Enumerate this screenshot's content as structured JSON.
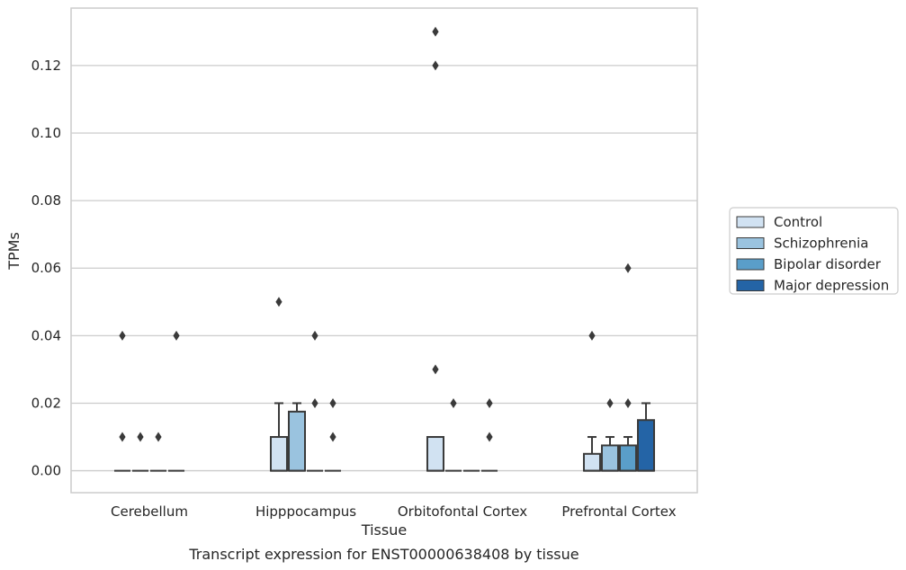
{
  "chart_data": {
    "type": "box",
    "title": "Transcript expression for ENST00000638408 by tissue",
    "xlabel": "Tissue",
    "ylabel": "TPMs",
    "ylim": [
      -0.0065,
      0.137
    ],
    "yticks": [
      0.0,
      0.02,
      0.04,
      0.06,
      0.08,
      0.1,
      0.12
    ],
    "ytick_labels": [
      "0.00",
      "0.02",
      "0.04",
      "0.06",
      "0.08",
      "0.10",
      "0.12"
    ],
    "grid": "horizontal",
    "legend_position": "right",
    "categories": [
      "Cerebellum",
      "Hipppocampus",
      "Orbitofontal Cortex",
      "Prefrontal Cortex"
    ],
    "series": [
      {
        "name": "Control",
        "color": "#d1e2f2",
        "boxes": [
          {
            "q1": 0,
            "median": 0,
            "q3": 0,
            "whisker_low": 0,
            "whisker_high": 0,
            "outliers": [
              0.04,
              0.01
            ]
          },
          {
            "q1": 0,
            "median": 0,
            "q3": 0.01,
            "whisker_low": 0,
            "whisker_high": 0.02,
            "outliers": [
              0.05
            ]
          },
          {
            "q1": 0,
            "median": 0,
            "q3": 0.01,
            "whisker_low": 0,
            "whisker_high": 0.01,
            "outliers": [
              0.13,
              0.12,
              0.03
            ]
          },
          {
            "q1": 0,
            "median": 0,
            "q3": 0.005,
            "whisker_low": 0,
            "whisker_high": 0.01,
            "outliers": [
              0.04
            ]
          }
        ]
      },
      {
        "name": "Schizophrenia",
        "color": "#9ac3df",
        "boxes": [
          {
            "q1": 0,
            "median": 0,
            "q3": 0,
            "whisker_low": 0,
            "whisker_high": 0,
            "outliers": [
              0.01
            ]
          },
          {
            "q1": 0,
            "median": 0,
            "q3": 0.0175,
            "whisker_low": 0,
            "whisker_high": 0.02,
            "outliers": []
          },
          {
            "q1": 0,
            "median": 0,
            "q3": 0,
            "whisker_low": 0,
            "whisker_high": 0,
            "outliers": [
              0.02
            ]
          },
          {
            "q1": 0,
            "median": 0,
            "q3": 0.0075,
            "whisker_low": 0,
            "whisker_high": 0.01,
            "outliers": [
              0.02
            ]
          }
        ]
      },
      {
        "name": "Bipolar disorder",
        "color": "#5a9ec9",
        "boxes": [
          {
            "q1": 0,
            "median": 0,
            "q3": 0,
            "whisker_low": 0,
            "whisker_high": 0,
            "outliers": [
              0.01
            ]
          },
          {
            "q1": 0,
            "median": 0,
            "q3": 0,
            "whisker_low": 0,
            "whisker_high": 0,
            "outliers": [
              0.04,
              0.02
            ]
          },
          {
            "q1": 0,
            "median": 0,
            "q3": 0,
            "whisker_low": 0,
            "whisker_high": 0,
            "outliers": []
          },
          {
            "q1": 0,
            "median": 0,
            "q3": 0.0075,
            "whisker_low": 0,
            "whisker_high": 0.01,
            "outliers": [
              0.06,
              0.02
            ]
          }
        ]
      },
      {
        "name": "Major depression",
        "color": "#2464a6",
        "boxes": [
          {
            "q1": 0,
            "median": 0,
            "q3": 0,
            "whisker_low": 0,
            "whisker_high": 0,
            "outliers": [
              0.04
            ]
          },
          {
            "q1": 0,
            "median": 0,
            "q3": 0,
            "whisker_low": 0,
            "whisker_high": 0,
            "outliers": [
              0.02,
              0.01
            ]
          },
          {
            "q1": 0,
            "median": 0,
            "q3": 0,
            "whisker_low": 0,
            "whisker_high": 0,
            "outliers": [
              0.02,
              0.01
            ]
          },
          {
            "q1": 0,
            "median": 0,
            "q3": 0.015,
            "whisker_low": 0,
            "whisker_high": 0.02,
            "outliers": []
          }
        ]
      }
    ]
  }
}
